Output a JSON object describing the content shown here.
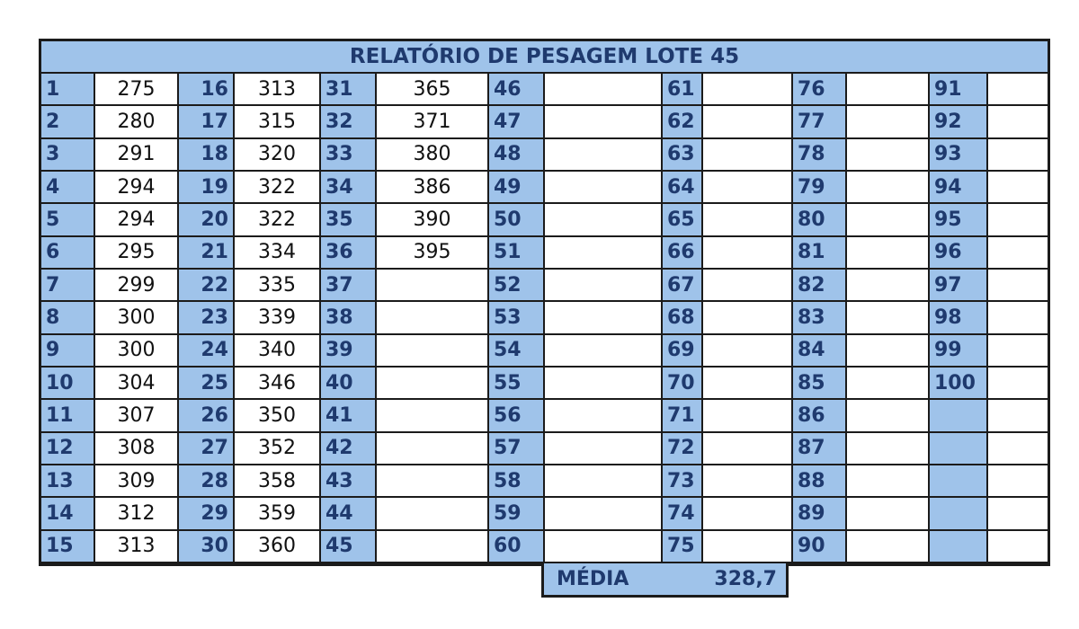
{
  "title": "RELATÓRIO DE PESAGEM LOTE 45",
  "weights": [
    275,
    280,
    291,
    294,
    294,
    295,
    299,
    300,
    300,
    304,
    307,
    308,
    309,
    312,
    313,
    313,
    315,
    320,
    322,
    322,
    334,
    335,
    339,
    340,
    346,
    350,
    352,
    358,
    359,
    360,
    365,
    371,
    380,
    386,
    390,
    395
  ],
  "total_slots": 100,
  "summary": {
    "label": "MÉDIA",
    "value": "328,7"
  },
  "colors": {
    "header_fill": "#9fc3ea",
    "header_text": "#1f3a6e",
    "border": "#1b1b1b"
  }
}
